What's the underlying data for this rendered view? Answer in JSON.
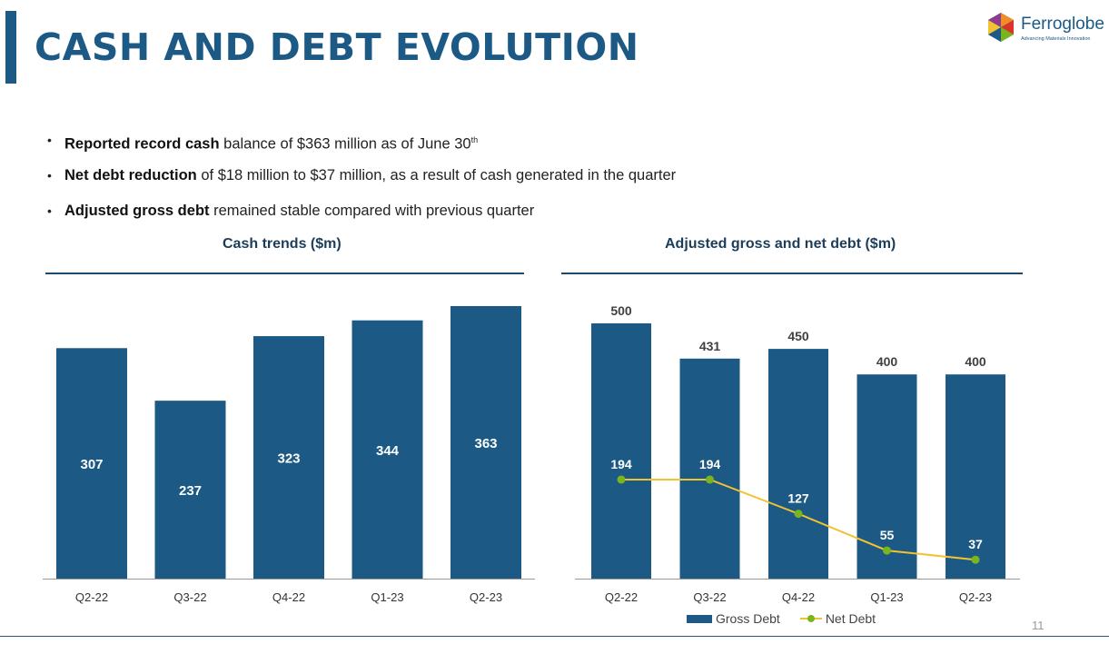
{
  "title": "CASH AND DEBT EVOLUTION",
  "logo": {
    "name": "Ferroglobe",
    "tagline": "Advancing Materials Innovation"
  },
  "bullets": [
    {
      "bold": "Reported record cash",
      "text": " balance of $363 million as of June 30",
      "sup": "th"
    },
    {
      "bold": "Net debt reduction",
      "text": " of $18 million to $37 million, as a result of cash generated in the quarter",
      "sup": ""
    },
    {
      "bold": "Adjusted gross debt",
      "text": " remained stable compared with previous quarter",
      "sup": ""
    }
  ],
  "page_number": "11",
  "colors": {
    "bar": "#1c5a85",
    "net_line": "#f2c230",
    "net_marker": "#7ab51d",
    "title": "#1c5a85"
  },
  "chart_data": [
    {
      "type": "bar",
      "title": "Cash trends ($m)",
      "categories": [
        "Q2-22",
        "Q3-22",
        "Q4-22",
        "Q1-23",
        "Q2-23"
      ],
      "values": [
        307,
        237,
        323,
        344,
        363
      ],
      "data_labels": [
        "307",
        "237",
        "323",
        "344",
        "363"
      ],
      "label_position": "inside",
      "grid": false
    },
    {
      "type": "bar",
      "title": "Adjusted gross and net debt ($m)",
      "categories": [
        "Q2-22",
        "Q3-22",
        "Q4-22",
        "Q1-23",
        "Q2-23"
      ],
      "series": [
        {
          "name": "Gross Debt",
          "type": "bar",
          "values": [
            500,
            431,
            450,
            400,
            400
          ],
          "data_labels": [
            "500",
            "431",
            "450",
            "400",
            "400"
          ]
        },
        {
          "name": "Net Debt",
          "type": "line",
          "values": [
            194,
            194,
            127,
            55,
            37
          ],
          "data_labels": [
            "194",
            "194",
            "127",
            "55",
            "37"
          ]
        }
      ],
      "legend_position": "bottom",
      "grid": false
    }
  ]
}
